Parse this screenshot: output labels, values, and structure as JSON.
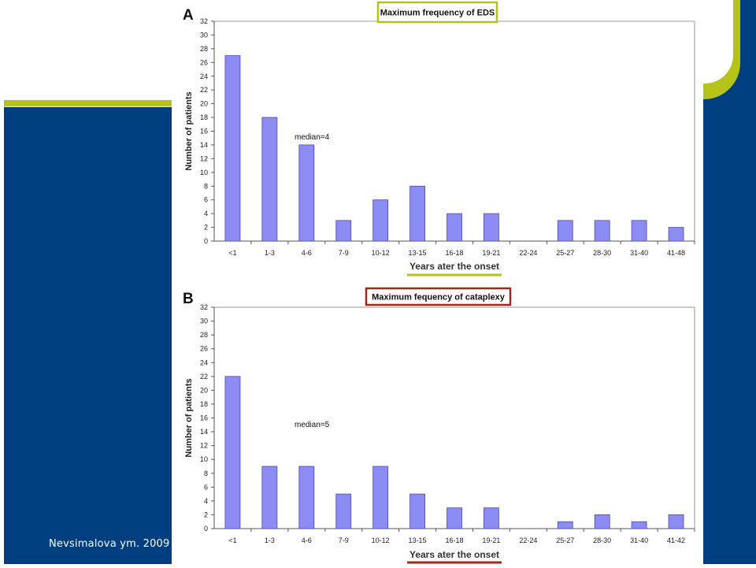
{
  "citation": "Nevsimalova ym. 2009",
  "colors": {
    "bar": "#8c8cf5",
    "bar_edge": "#4a4aa8",
    "slide_blue": "#003f7f",
    "slide_green": "#b5c21a",
    "title_box_a": "#b5c21a",
    "title_box_b": "#a0281e"
  },
  "chart_data": [
    {
      "type": "bar",
      "panel": "A",
      "title": "Maximum frequency of EDS",
      "xlabel": "Years ater the onset",
      "ylabel": "Number of patients",
      "annotation": "median=4",
      "ylim": [
        0,
        32
      ],
      "yticks": [
        "0",
        "2",
        "4",
        "6",
        "8",
        "10",
        "12",
        "14",
        "16",
        "18",
        "20",
        "22",
        "24",
        "26",
        "28",
        "30",
        "32"
      ],
      "categories": [
        "<1",
        "1-3",
        "4-6",
        "7-9",
        "10-12",
        "13-15",
        "16-18",
        "19-21",
        "22-24",
        "25-27",
        "28-30",
        "31-40",
        "41-48"
      ],
      "values": [
        27,
        18,
        14,
        3,
        6,
        8,
        4,
        4,
        0,
        3,
        3,
        3,
        2
      ]
    },
    {
      "type": "bar",
      "panel": "B",
      "title": "Maximum fequency of cataplexy",
      "xlabel": "Years ater the onset",
      "ylabel": "Number of patients",
      "annotation": "median=5",
      "ylim": [
        0,
        32
      ],
      "yticks": [
        "0",
        "2",
        "4",
        "6",
        "8",
        "10",
        "12",
        "14",
        "16",
        "18",
        "20",
        "22",
        "24",
        "26",
        "28",
        "30",
        "32"
      ],
      "categories": [
        "<1",
        "1-3",
        "4-6",
        "7-9",
        "10-12",
        "13-15",
        "16-18",
        "19-21",
        "22-24",
        "25-27",
        "28-30",
        "31-40",
        "41-42"
      ],
      "values": [
        22,
        9,
        9,
        5,
        9,
        5,
        3,
        3,
        0,
        1,
        2,
        1,
        2
      ]
    }
  ]
}
